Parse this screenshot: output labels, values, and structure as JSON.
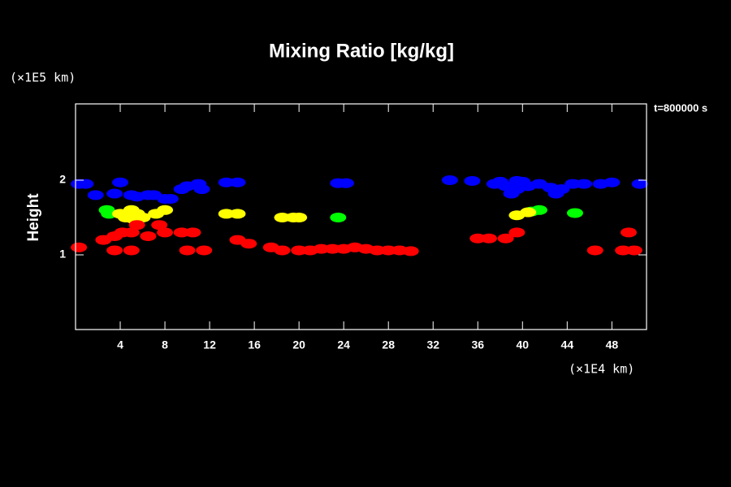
{
  "chart_data": {
    "type": "scatter",
    "title": "Mixing Ratio [kg/kg]",
    "y_label": "Height",
    "y_unit": "(×1E5 km)",
    "x_unit": "(×1E4 km)",
    "annotation": "t=800000 s",
    "xlim": [
      0,
      51.1
    ],
    "ylim": [
      0,
      3
    ],
    "xticks": [
      4,
      8,
      12,
      16,
      20,
      24,
      28,
      32,
      36,
      40,
      44,
      48
    ],
    "yticks": [
      1,
      2
    ],
    "background": "#000000",
    "series": [
      {
        "color": "#0000ff",
        "x": [
          0.3,
          0.9,
          1.8,
          3.5,
          4.0,
          5.0,
          5.5,
          6.5,
          7.0,
          8.0,
          8.5,
          9.5,
          10.0,
          11.0,
          11.3,
          13.5,
          14.5,
          23.5,
          24.2,
          33.5,
          35.5,
          37.5,
          38.5,
          39.5,
          40.5,
          41.5,
          42.5,
          43.5,
          43.0,
          44.5,
          45.5,
          47.0,
          48.0,
          50.5,
          39.0,
          38.0,
          40.0,
          39.5
        ],
        "y": [
          1.95,
          1.95,
          1.8,
          1.82,
          1.97,
          1.8,
          1.78,
          1.8,
          1.8,
          1.75,
          1.75,
          1.88,
          1.92,
          1.95,
          1.88,
          1.97,
          1.97,
          1.96,
          1.96,
          2.0,
          1.99,
          1.95,
          1.92,
          1.88,
          1.92,
          1.95,
          1.9,
          1.88,
          1.82,
          1.95,
          1.95,
          1.95,
          1.97,
          1.95,
          1.82,
          1.98,
          1.98,
          1.99
        ]
      },
      {
        "color": "#00ff00",
        "x": [
          2.8,
          3.0,
          23.5,
          40.8,
          41.5,
          44.7
        ],
        "y": [
          1.6,
          1.55,
          1.5,
          1.58,
          1.6,
          1.56
        ]
      },
      {
        "color": "#ffff00",
        "x": [
          4.0,
          4.5,
          5.0,
          5.5,
          6.0,
          5.2,
          7.2,
          8.0,
          13.5,
          14.5,
          18.5,
          19.5,
          20.0,
          39.5,
          40.5
        ],
        "y": [
          1.55,
          1.5,
          1.6,
          1.55,
          1.5,
          1.48,
          1.55,
          1.6,
          1.55,
          1.55,
          1.5,
          1.5,
          1.5,
          1.53,
          1.57
        ]
      },
      {
        "color": "#ff0000",
        "x": [
          0.3,
          2.5,
          3.5,
          4.2,
          5.0,
          5.5,
          6.5,
          8.0,
          7.5,
          9.5,
          10.5,
          3.5,
          5.0,
          10.0,
          11.5,
          14.5,
          15.5,
          17.5,
          18.5,
          20.0,
          21.0,
          22.0,
          23.0,
          24.0,
          25.0,
          26.0,
          27.0,
          28.0,
          29.0,
          30.0,
          36.0,
          37.0,
          38.5,
          39.5,
          46.5,
          49.0,
          50.0,
          49.5
        ],
        "y": [
          1.1,
          1.2,
          1.25,
          1.3,
          1.3,
          1.4,
          1.25,
          1.3,
          1.4,
          1.3,
          1.3,
          1.06,
          1.06,
          1.06,
          1.06,
          1.2,
          1.15,
          1.1,
          1.06,
          1.06,
          1.06,
          1.08,
          1.08,
          1.08,
          1.1,
          1.08,
          1.06,
          1.06,
          1.06,
          1.05,
          1.22,
          1.22,
          1.22,
          1.3,
          1.06,
          1.06,
          1.06,
          1.3
        ]
      }
    ]
  }
}
